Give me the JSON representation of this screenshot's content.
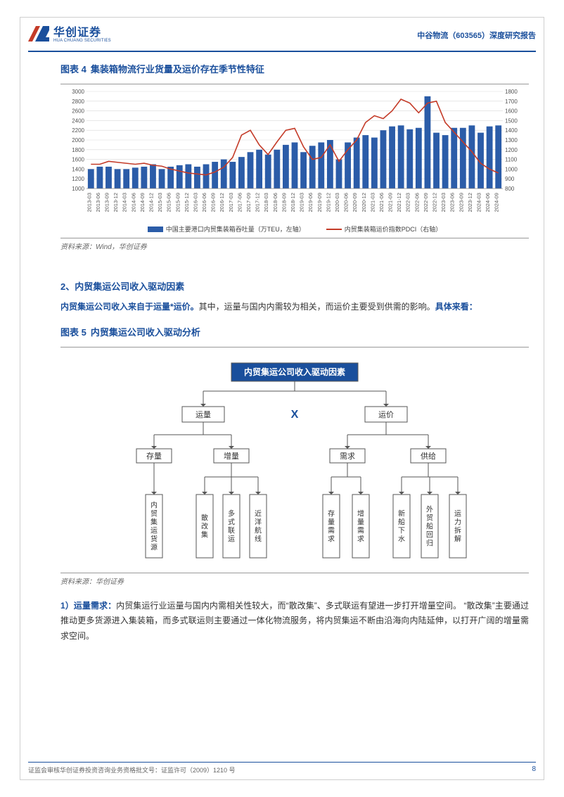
{
  "header": {
    "logo_zh": "华创证券",
    "logo_en": "HUA CHUANG SECURITIES",
    "title_right": "中谷物流（603565）深度研究报告"
  },
  "chart4": {
    "title_prefix": "图表 4",
    "title": "集装箱物流行业货量及运价存在季节性特征",
    "type": "bar+line",
    "categories": [
      "2013-03",
      "2013-06",
      "2013-09",
      "2013-12",
      "2014-03",
      "2014-06",
      "2014-09",
      "2014-12",
      "2015-03",
      "2015-06",
      "2015-09",
      "2015-12",
      "2016-03",
      "2016-06",
      "2016-09",
      "2016-12",
      "2017-03",
      "2017-06",
      "2017-09",
      "2017-12",
      "2018-03",
      "2018-06",
      "2018-09",
      "2018-12",
      "2019-03",
      "2019-06",
      "2019-09",
      "2019-12",
      "2020-03",
      "2020-06",
      "2020-09",
      "2020-12",
      "2021-03",
      "2021-06",
      "2021-09",
      "2021-12",
      "2022-03",
      "2022-06",
      "2022-09",
      "2022-12",
      "2023-03",
      "2023-06",
      "2023-09",
      "2023-12",
      "2024-03",
      "2024-06",
      "2024-09"
    ],
    "bar_values": [
      1400,
      1450,
      1450,
      1400,
      1400,
      1430,
      1450,
      1500,
      1400,
      1450,
      1480,
      1500,
      1450,
      1500,
      1550,
      1600,
      1550,
      1650,
      1750,
      1800,
      1700,
      1800,
      1900,
      1950,
      1750,
      1880,
      1950,
      2000,
      1600,
      1950,
      2050,
      2100,
      2050,
      2200,
      2280,
      2300,
      2220,
      2250,
      2900,
      2150,
      2100,
      2250,
      2250,
      2300,
      2150,
      2280,
      2300
    ],
    "line_values": [
      1050,
      1050,
      1080,
      1070,
      1060,
      1050,
      1060,
      1040,
      1030,
      1000,
      980,
      960,
      950,
      940,
      970,
      1020,
      1120,
      1350,
      1400,
      1250,
      1150,
      1280,
      1400,
      1420,
      1230,
      1100,
      1120,
      1250,
      1080,
      1200,
      1300,
      1480,
      1550,
      1520,
      1600,
      1720,
      1680,
      1580,
      1680,
      1700,
      1480,
      1380,
      1280,
      1180,
      1060,
      1000,
      960
    ],
    "left_axis": {
      "min": 1000,
      "max": 3000,
      "step": 200,
      "label": "中国主要港口内贸集装箱吞吐量（万TEU，左轴）"
    },
    "right_axis": {
      "min": 800,
      "max": 1800,
      "step": 100,
      "label": "内贸集装箱运价指数PDCI（右轴）"
    },
    "bar_color": "#2b5ca8",
    "line_color": "#c43b28",
    "grid_color": "#d9d9d9",
    "axis_fontsize": 8,
    "source": "资料来源：Wind，华创证券"
  },
  "section2": {
    "heading": "2、内贸集运公司收入驱动因素",
    "p1_emph": "内贸集运公司收入来自于运量*运价。",
    "p1_rest": "其中，运量与国内内需较为相关，而运价主要受到供需的影响。",
    "p1_tail": "具体来看："
  },
  "chart5": {
    "title_prefix": "图表 5",
    "title": "内贸集运公司收入驱动分析",
    "root": "内贸集运公司收入驱动因素",
    "multiply": "X",
    "level2": [
      "运量",
      "运价"
    ],
    "level3_left": [
      "存量",
      "增量"
    ],
    "level3_right": [
      "需求",
      "供给"
    ],
    "leaves_stock": [
      "内贸集运货源"
    ],
    "leaves_inc": [
      "散改集",
      "多式联运",
      "近洋航线"
    ],
    "leaves_demand": [
      "存量需求",
      "增量需求"
    ],
    "leaves_supply": [
      "新船下水",
      "外贸船回归",
      "运力拆解"
    ],
    "root_bg": "#1a4f9c",
    "root_text_color": "#ffffff",
    "node_border": "#555555",
    "line_color": "#555555",
    "fontsize_root": 12,
    "fontsize_mid": 11,
    "fontsize_leaf": 10,
    "source": "资料来源：华创证券"
  },
  "para1": {
    "lead": "1）运量需求：",
    "body": "内贸集运行业运量与国内内需相关性较大，而“散改集”、多式联运有望进一步打开增量空间。 “散改集”主要通过推动更多货源进入集装箱，而多式联运则主要通过一体化物流服务，将内贸集运不断由沿海向内陆延伸，以打开广阔的增量需求空间。"
  },
  "footer": {
    "left": "证监会审核华创证券投资咨询业务资格批文号：证监许可（2009）1210 号",
    "page": "8"
  }
}
